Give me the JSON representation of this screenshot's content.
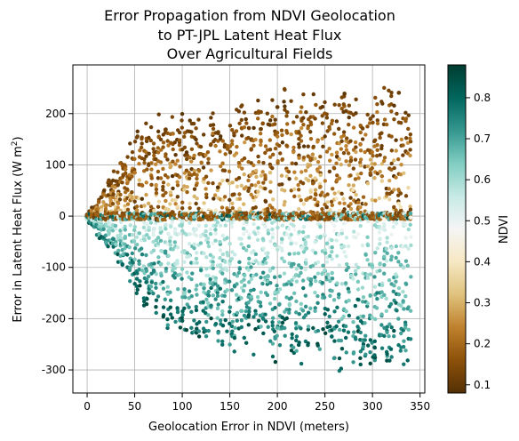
{
  "chart_data": {
    "type": "scatter",
    "title_lines": [
      "Error Propagation from NDVI Geolocation",
      "to PT-JPL Latent Heat Flux",
      "Over Agricultural Fields"
    ],
    "xlabel": "Geolocation Error in NDVI (meters)",
    "ylabel_main": "Error in Latent Heat Flux (W m",
    "ylabel_sup": "2",
    "ylabel_close": ")",
    "xlim": [
      -15,
      355
    ],
    "ylim": [
      -345,
      295
    ],
    "xticks": [
      0,
      50,
      100,
      150,
      200,
      250,
      300,
      350
    ],
    "yticks": [
      -300,
      -200,
      -100,
      0,
      100,
      200
    ],
    "grid": true,
    "x_sampling": {
      "start": 0,
      "end": 340,
      "step": 2.5
    },
    "envelope_y": [
      [
        0,
        5,
        -5
      ],
      [
        10,
        30,
        -40
      ],
      [
        25,
        90,
        -80
      ],
      [
        50,
        170,
        -160
      ],
      [
        75,
        210,
        -215
      ],
      [
        100,
        210,
        -265
      ],
      [
        150,
        210,
        -290
      ],
      [
        200,
        255,
        -300
      ],
      [
        250,
        265,
        -315
      ],
      [
        340,
        265,
        -315
      ]
    ],
    "colorbar": {
      "label": "NDVI",
      "range": [
        0.08,
        0.88
      ],
      "ticks": [
        0.1,
        0.2,
        0.3,
        0.4,
        0.5,
        0.6,
        0.7,
        0.8
      ],
      "colormap": "BrBG",
      "stops": [
        "#543005",
        "#8c510a",
        "#bf812d",
        "#dfc27d",
        "#f6e8c3",
        "#f5f5f5",
        "#c7eae5",
        "#80cdc1",
        "#35978f",
        "#01665e",
        "#003c30"
      ]
    }
  }
}
